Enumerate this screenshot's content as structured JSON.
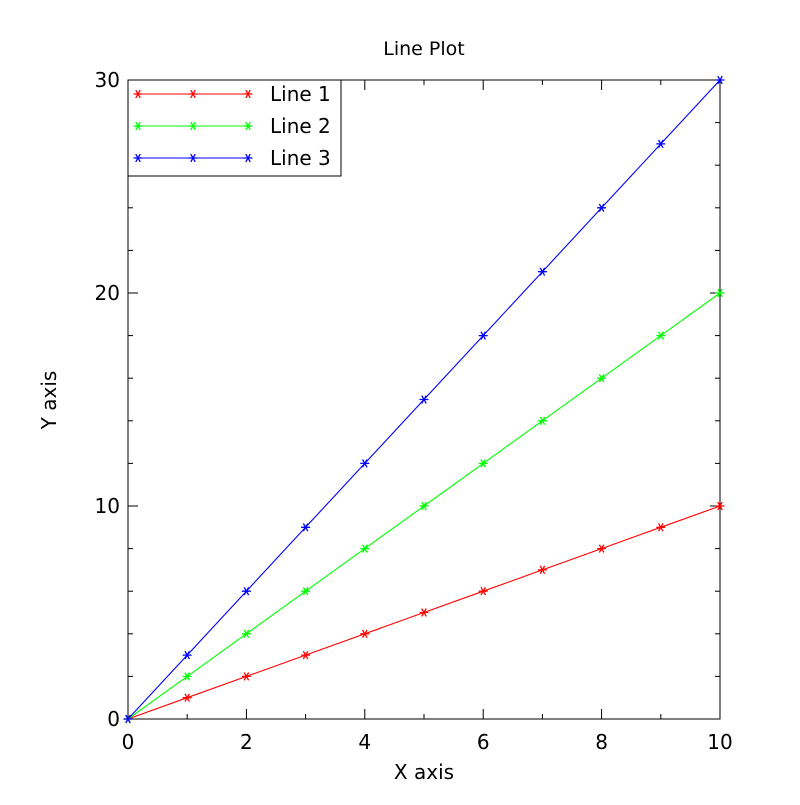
{
  "chart_data": {
    "type": "line",
    "title": "Line Plot",
    "xlabel": "X axis",
    "ylabel": "Y axis",
    "xlim": [
      0,
      10
    ],
    "ylim": [
      0,
      30
    ],
    "x_ticks": [
      0,
      2,
      4,
      6,
      8,
      10
    ],
    "y_ticks": [
      0,
      10,
      20,
      30
    ],
    "grid": false,
    "legend_position": "top-left",
    "marker": "asterisk",
    "x": [
      0,
      1,
      2,
      3,
      4,
      5,
      6,
      7,
      8,
      9,
      10
    ],
    "series": [
      {
        "name": "Line 1",
        "color": "#ff0000",
        "values": [
          0,
          1,
          2,
          3,
          4,
          5,
          6,
          7,
          8,
          9,
          10
        ]
      },
      {
        "name": "Line 2",
        "color": "#00ff00",
        "values": [
          0,
          2,
          4,
          6,
          8,
          10,
          12,
          14,
          16,
          18,
          20
        ]
      },
      {
        "name": "Line 3",
        "color": "#0000ff",
        "values": [
          0,
          3,
          6,
          9,
          12,
          15,
          18,
          21,
          24,
          27,
          30
        ]
      }
    ]
  }
}
